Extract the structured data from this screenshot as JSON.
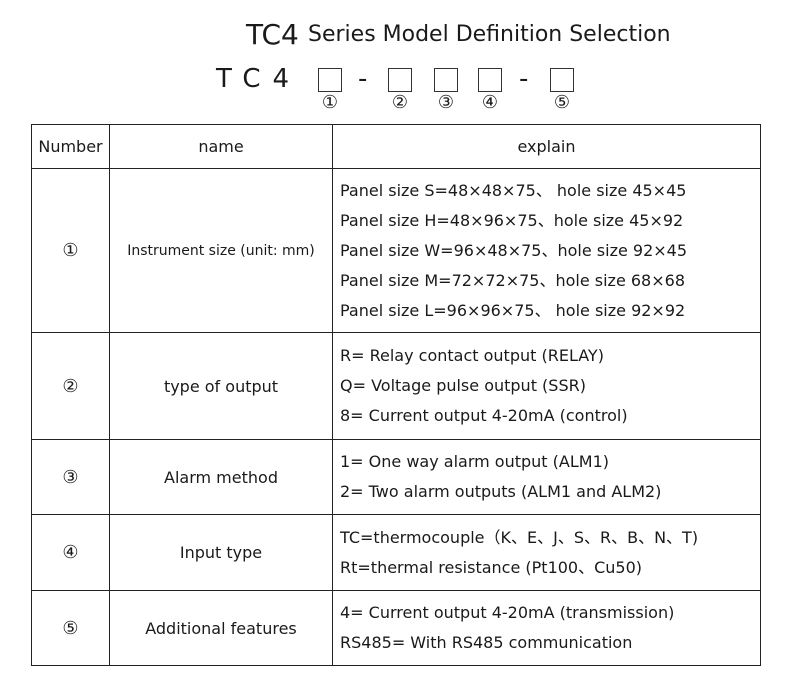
{
  "header": {
    "title_prefix": "TC4",
    "title": "Series Model Definition Selection",
    "model_code": {
      "prefix": "TC4",
      "separator": "-",
      "slots": [
        "①",
        "②",
        "③",
        "④",
        "⑤"
      ]
    }
  },
  "table": {
    "columns": [
      "Number",
      "name",
      "explain"
    ],
    "rows": [
      {
        "number": "①",
        "name": "Instrument size (unit: mm)",
        "explain": [
          "Panel size  S=48×48×75、 hole size 45×45",
          "Panel size  H=48×96×75、hole size  45×92",
          "Panel size  W=96×48×75、hole size   92×45",
          "Panel size  M=72×72×75、hole size  68×68",
          "Panel size  L=96×96×75、 hole size 92×92"
        ]
      },
      {
        "number": "②",
        "name": "type of output",
        "explain": [
          "R= Relay contact output (RELAY)",
          "Q= Voltage pulse output (SSR)",
          "8=  Current output 4-20mA (control)"
        ]
      },
      {
        "number": "③",
        "name": "Alarm method",
        "explain": [
          "1= One way alarm output (ALM1)",
          "2= Two alarm outputs (ALM1 and ALM2)"
        ]
      },
      {
        "number": "④",
        "name": "Input type",
        "explain": [
          "TC=thermocouple（K、E、J、S、R、B、N、T)",
          "Rt=thermal resistance  (Pt100、Cu50)"
        ]
      },
      {
        "number": "⑤",
        "name": "Additional features",
        "explain": [
          "4=  Current output 4-20mA (transmission)",
          "RS485= With RS485 communication"
        ]
      }
    ]
  }
}
